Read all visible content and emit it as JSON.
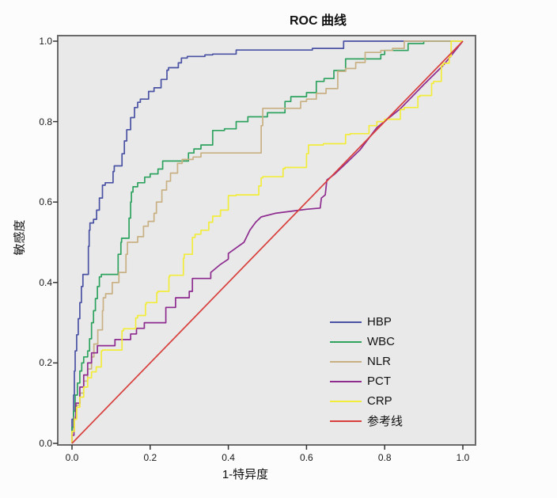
{
  "title": "ROC 曲线",
  "axes": {
    "x_label": "1-特异度",
    "y_label": "敏感度"
  },
  "colors": {
    "plot_background": "#e9e9e9",
    "frame": "#6a6a6a",
    "tick": "#333333",
    "outer_background": "#fcfcfc"
  },
  "chart_data": {
    "type": "line",
    "title": "ROC 曲线",
    "xlabel": "1-特异度",
    "ylabel": "敏感度",
    "xlim": [
      0,
      1
    ],
    "ylim": [
      0,
      1
    ],
    "x_ticks": [
      0.0,
      0.2,
      0.4,
      0.6,
      0.8,
      1.0
    ],
    "y_ticks": [
      0.0,
      0.2,
      0.4,
      0.6,
      0.8,
      1.0
    ],
    "grid": false,
    "legend_position": "inside-bottom-right",
    "series": [
      {
        "name": "HBP",
        "color": "#4a52a4",
        "style": "step",
        "points": [
          [
            0,
            0
          ],
          [
            0.004,
            0.06
          ],
          [
            0.006,
            0.12
          ],
          [
            0.008,
            0.18
          ],
          [
            0.012,
            0.23
          ],
          [
            0.016,
            0.27
          ],
          [
            0.02,
            0.31
          ],
          [
            0.024,
            0.35
          ],
          [
            0.028,
            0.39
          ],
          [
            0.042,
            0.42
          ],
          [
            0.044,
            0.49
          ],
          [
            0.046,
            0.53
          ],
          [
            0.055,
            0.548
          ],
          [
            0.063,
            0.557
          ],
          [
            0.07,
            0.58
          ],
          [
            0.078,
            0.61
          ],
          [
            0.085,
            0.642
          ],
          [
            0.105,
            0.648
          ],
          [
            0.108,
            0.676
          ],
          [
            0.128,
            0.69
          ],
          [
            0.134,
            0.72
          ],
          [
            0.14,
            0.752
          ],
          [
            0.15,
            0.78
          ],
          [
            0.16,
            0.81
          ],
          [
            0.168,
            0.835
          ],
          [
            0.175,
            0.848
          ],
          [
            0.196,
            0.856
          ],
          [
            0.21,
            0.875
          ],
          [
            0.228,
            0.884
          ],
          [
            0.243,
            0.905
          ],
          [
            0.247,
            0.928
          ],
          [
            0.272,
            0.934
          ],
          [
            0.28,
            0.946
          ],
          [
            0.295,
            0.958
          ],
          [
            0.34,
            0.962
          ],
          [
            0.36,
            0.966
          ],
          [
            0.42,
            0.968
          ],
          [
            0.432,
            0.978
          ],
          [
            0.615,
            0.978
          ],
          [
            0.62,
            0.982
          ],
          [
            0.695,
            0.982
          ],
          [
            0.7,
            1
          ],
          [
            1,
            1
          ]
        ]
      },
      {
        "name": "WBC",
        "color": "#2ea25f",
        "style": "step",
        "points": [
          [
            0,
            0
          ],
          [
            0.004,
            0.04
          ],
          [
            0.008,
            0.08
          ],
          [
            0.014,
            0.12
          ],
          [
            0.02,
            0.15
          ],
          [
            0.025,
            0.18
          ],
          [
            0.03,
            0.2
          ],
          [
            0.04,
            0.215
          ],
          [
            0.045,
            0.23
          ],
          [
            0.05,
            0.26
          ],
          [
            0.055,
            0.3
          ],
          [
            0.06,
            0.33
          ],
          [
            0.065,
            0.36
          ],
          [
            0.07,
            0.39
          ],
          [
            0.075,
            0.414
          ],
          [
            0.118,
            0.42
          ],
          [
            0.125,
            0.47
          ],
          [
            0.127,
            0.5
          ],
          [
            0.146,
            0.51
          ],
          [
            0.15,
            0.56
          ],
          [
            0.152,
            0.6
          ],
          [
            0.156,
            0.625
          ],
          [
            0.168,
            0.638
          ],
          [
            0.186,
            0.648
          ],
          [
            0.2,
            0.662
          ],
          [
            0.22,
            0.67
          ],
          [
            0.232,
            0.682
          ],
          [
            0.247,
            0.702
          ],
          [
            0.298,
            0.702
          ],
          [
            0.312,
            0.722
          ],
          [
            0.33,
            0.732
          ],
          [
            0.36,
            0.742
          ],
          [
            0.39,
            0.778
          ],
          [
            0.42,
            0.782
          ],
          [
            0.45,
            0.8
          ],
          [
            0.5,
            0.812
          ],
          [
            0.545,
            0.822
          ],
          [
            0.56,
            0.85
          ],
          [
            0.6,
            0.862
          ],
          [
            0.625,
            0.872
          ],
          [
            0.645,
            0.9
          ],
          [
            0.67,
            0.907
          ],
          [
            0.7,
            0.927
          ],
          [
            0.73,
            0.956
          ],
          [
            0.79,
            0.956
          ],
          [
            0.8,
            0.967
          ],
          [
            0.86,
            0.977
          ],
          [
            0.9,
            0.994
          ],
          [
            0.93,
            1
          ],
          [
            1,
            1
          ]
        ]
      },
      {
        "name": "NLR",
        "color": "#c8b083",
        "style": "step",
        "points": [
          [
            0,
            0
          ],
          [
            0.006,
            0.03
          ],
          [
            0.012,
            0.065
          ],
          [
            0.02,
            0.095
          ],
          [
            0.03,
            0.125
          ],
          [
            0.04,
            0.155
          ],
          [
            0.05,
            0.185
          ],
          [
            0.056,
            0.215
          ],
          [
            0.066,
            0.247
          ],
          [
            0.078,
            0.282
          ],
          [
            0.08,
            0.33
          ],
          [
            0.086,
            0.362
          ],
          [
            0.103,
            0.372
          ],
          [
            0.12,
            0.4
          ],
          [
            0.138,
            0.425
          ],
          [
            0.142,
            0.47
          ],
          [
            0.168,
            0.5
          ],
          [
            0.183,
            0.514
          ],
          [
            0.195,
            0.54
          ],
          [
            0.21,
            0.552
          ],
          [
            0.216,
            0.572
          ],
          [
            0.23,
            0.6
          ],
          [
            0.242,
            0.63
          ],
          [
            0.252,
            0.652
          ],
          [
            0.27,
            0.672
          ],
          [
            0.282,
            0.696
          ],
          [
            0.31,
            0.706
          ],
          [
            0.33,
            0.712
          ],
          [
            0.356,
            0.722
          ],
          [
            0.484,
            0.722
          ],
          [
            0.488,
            0.79
          ],
          [
            0.492,
            0.833
          ],
          [
            0.585,
            0.833
          ],
          [
            0.6,
            0.85
          ],
          [
            0.625,
            0.856
          ],
          [
            0.65,
            0.87
          ],
          [
            0.68,
            0.882
          ],
          [
            0.7,
            0.925
          ],
          [
            0.726,
            0.932
          ],
          [
            0.75,
            0.947
          ],
          [
            0.79,
            0.972
          ],
          [
            0.82,
            0.977
          ],
          [
            0.85,
            0.982
          ],
          [
            0.88,
            1
          ],
          [
            1,
            1
          ]
        ]
      },
      {
        "name": "PCT",
        "color": "#8d2b8f",
        "style": "linear",
        "points": [
          [
            0,
            0
          ],
          [
            0,
            0.02
          ],
          [
            0.005,
            0.02
          ],
          [
            0.005,
            0.06
          ],
          [
            0.01,
            0.06
          ],
          [
            0.01,
            0.1
          ],
          [
            0.02,
            0.1
          ],
          [
            0.02,
            0.14
          ],
          [
            0.03,
            0.14
          ],
          [
            0.03,
            0.17
          ],
          [
            0.04,
            0.17
          ],
          [
            0.04,
            0.2
          ],
          [
            0.05,
            0.2
          ],
          [
            0.05,
            0.225
          ],
          [
            0.065,
            0.225
          ],
          [
            0.065,
            0.243
          ],
          [
            0.11,
            0.243
          ],
          [
            0.11,
            0.258
          ],
          [
            0.15,
            0.258
          ],
          [
            0.15,
            0.272
          ],
          [
            0.165,
            0.272
          ],
          [
            0.165,
            0.286
          ],
          [
            0.185,
            0.286
          ],
          [
            0.185,
            0.3
          ],
          [
            0.24,
            0.3
          ],
          [
            0.24,
            0.338
          ],
          [
            0.265,
            0.338
          ],
          [
            0.265,
            0.362
          ],
          [
            0.3,
            0.362
          ],
          [
            0.3,
            0.378
          ],
          [
            0.308,
            0.378
          ],
          [
            0.308,
            0.41
          ],
          [
            0.355,
            0.41
          ],
          [
            0.355,
            0.425
          ],
          [
            0.38,
            0.445
          ],
          [
            0.4,
            0.458
          ],
          [
            0.4,
            0.472
          ],
          [
            0.42,
            0.486
          ],
          [
            0.44,
            0.5
          ],
          [
            0.455,
            0.53
          ],
          [
            0.47,
            0.55
          ],
          [
            0.484,
            0.563
          ],
          [
            0.52,
            0.572
          ],
          [
            0.56,
            0.577
          ],
          [
            0.6,
            0.582
          ],
          [
            0.635,
            0.585
          ],
          [
            0.638,
            0.61
          ],
          [
            0.648,
            0.618
          ],
          [
            0.652,
            0.655
          ],
          [
            0.67,
            0.668
          ],
          [
            0.7,
            0.695
          ],
          [
            0.737,
            0.73
          ],
          [
            0.78,
            0.785
          ],
          [
            0.84,
            0.832
          ],
          [
            0.9,
            0.892
          ],
          [
            0.95,
            0.94
          ],
          [
            1,
            1
          ]
        ]
      },
      {
        "name": "CRP",
        "color": "#f2ec3b",
        "style": "step",
        "points": [
          [
            0,
            0
          ],
          [
            0.006,
            0.03
          ],
          [
            0.012,
            0.06
          ],
          [
            0.02,
            0.09
          ],
          [
            0.03,
            0.115
          ],
          [
            0.04,
            0.14
          ],
          [
            0.05,
            0.163
          ],
          [
            0.062,
            0.178
          ],
          [
            0.075,
            0.19
          ],
          [
            0.078,
            0.23
          ],
          [
            0.128,
            0.232
          ],
          [
            0.132,
            0.28
          ],
          [
            0.163,
            0.285
          ],
          [
            0.168,
            0.312
          ],
          [
            0.188,
            0.318
          ],
          [
            0.19,
            0.346
          ],
          [
            0.217,
            0.35
          ],
          [
            0.22,
            0.375
          ],
          [
            0.248,
            0.378
          ],
          [
            0.25,
            0.414
          ],
          [
            0.285,
            0.418
          ],
          [
            0.287,
            0.46
          ],
          [
            0.308,
            0.47
          ],
          [
            0.315,
            0.512
          ],
          [
            0.33,
            0.52
          ],
          [
            0.35,
            0.53
          ],
          [
            0.36,
            0.55
          ],
          [
            0.38,
            0.565
          ],
          [
            0.4,
            0.58
          ],
          [
            0.42,
            0.616
          ],
          [
            0.478,
            0.618
          ],
          [
            0.484,
            0.64
          ],
          [
            0.488,
            0.66
          ],
          [
            0.54,
            0.663
          ],
          [
            0.545,
            0.683
          ],
          [
            0.6,
            0.686
          ],
          [
            0.605,
            0.72
          ],
          [
            0.643,
            0.742
          ],
          [
            0.7,
            0.745
          ],
          [
            0.712,
            0.768
          ],
          [
            0.76,
            0.77
          ],
          [
            0.78,
            0.79
          ],
          [
            0.8,
            0.8
          ],
          [
            0.84,
            0.806
          ],
          [
            0.85,
            0.83
          ],
          [
            0.885,
            0.835
          ],
          [
            0.89,
            0.862
          ],
          [
            0.92,
            0.865
          ],
          [
            0.925,
            0.895
          ],
          [
            0.945,
            0.9
          ],
          [
            0.95,
            0.94
          ],
          [
            0.965,
            0.945
          ],
          [
            0.97,
            0.962
          ],
          [
            1,
            1
          ]
        ]
      },
      {
        "name": "参考线",
        "color": "#d8403d",
        "style": "linear",
        "points": [
          [
            0,
            0
          ],
          [
            1,
            1
          ]
        ]
      }
    ]
  },
  "legend": {
    "items": [
      {
        "label": "HBP",
        "color": "#4a52a4"
      },
      {
        "label": "WBC",
        "color": "#2ea25f"
      },
      {
        "label": "NLR",
        "color": "#c8b083"
      },
      {
        "label": "PCT",
        "color": "#8d2b8f"
      },
      {
        "label": "CRP",
        "color": "#f2ec3b"
      },
      {
        "label": "参考线",
        "color": "#d8403d"
      }
    ]
  }
}
